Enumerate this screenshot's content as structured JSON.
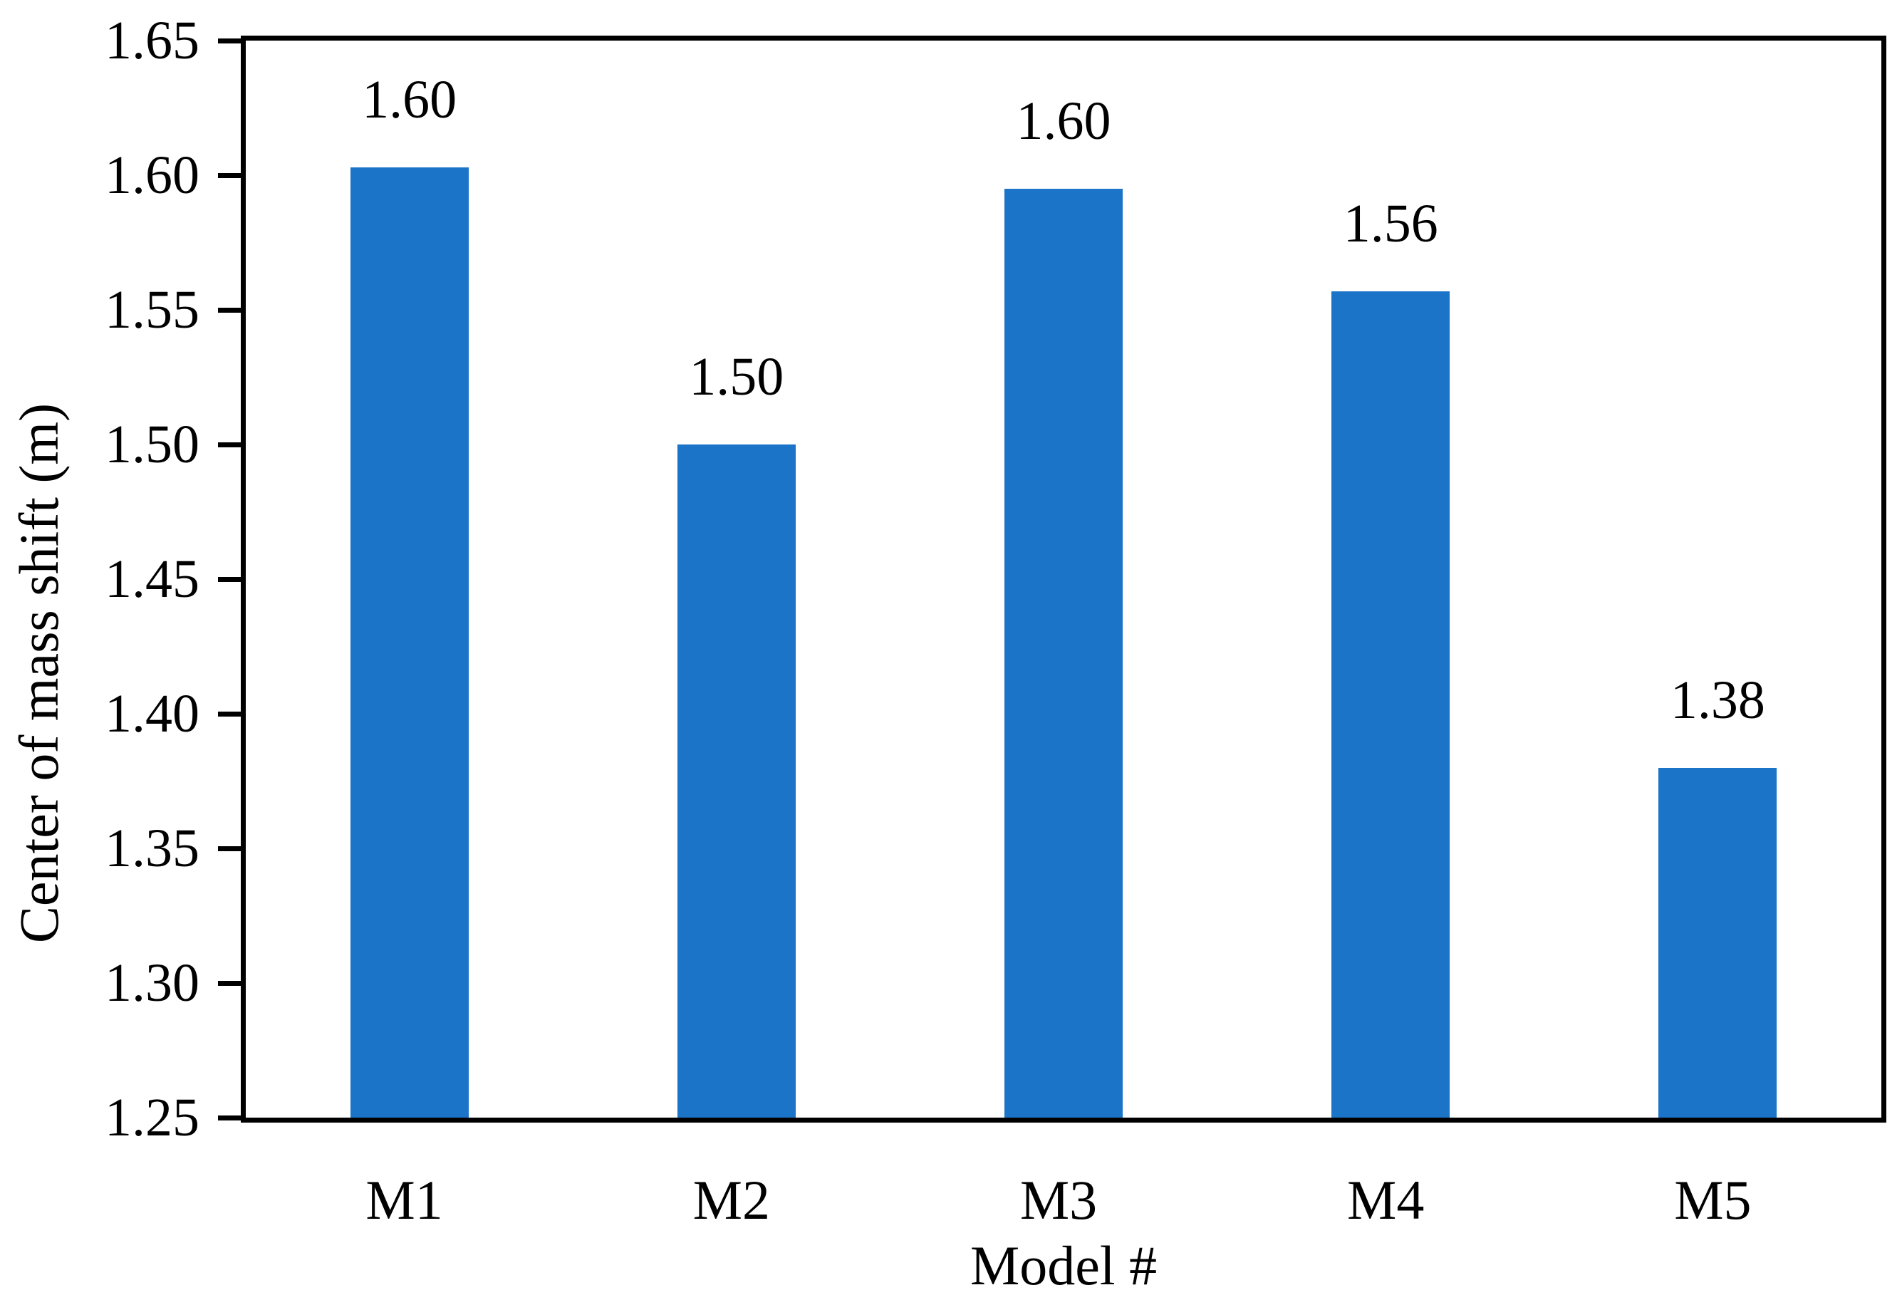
{
  "chart_data": {
    "type": "bar",
    "title": "",
    "xlabel": "Model #",
    "ylabel": "Center of mass shift (m)",
    "categories": [
      "M1",
      "M2",
      "M3",
      "M4",
      "M5"
    ],
    "values": [
      1.603,
      1.5,
      1.595,
      1.557,
      1.38
    ],
    "bar_labels": [
      "1.60",
      "1.50",
      "1.60",
      "1.56",
      "1.38"
    ],
    "ylim": [
      1.25,
      1.65
    ],
    "ytick_step": 0.05,
    "yticks": [
      "1.25",
      "1.30",
      "1.35",
      "1.40",
      "1.45",
      "1.50",
      "1.55",
      "1.60",
      "1.65"
    ],
    "grid": false,
    "legend": false,
    "bar_color": "#1B74C8",
    "axis_color": "#000000",
    "background_color": "#FFFFFF",
    "plot_border": "box"
  }
}
